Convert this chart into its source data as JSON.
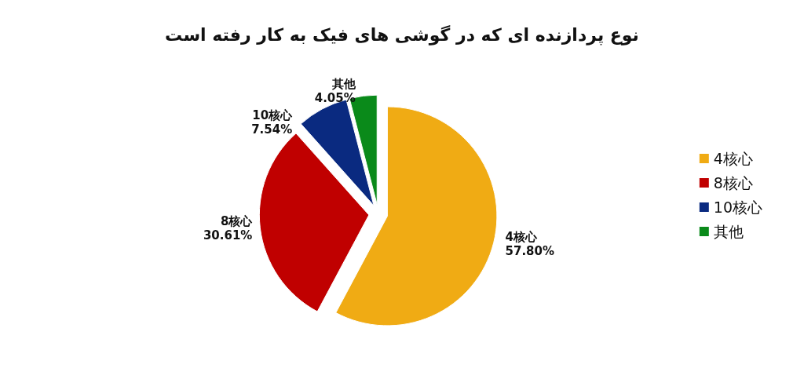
{
  "chart_data": {
    "type": "pie",
    "title": "نوع پردازنده ای که در گوشی های فیک به کار رفته است",
    "categories": [
      "4核心",
      "8核心",
      "10核心",
      "其他"
    ],
    "values": [
      57.8,
      30.61,
      7.54,
      4.05
    ],
    "value_labels": [
      "57.80%",
      "30.61%",
      "7.54%",
      "4.05%"
    ],
    "colors": [
      "#f0ab14",
      "#c00000",
      "#0a2a80",
      "#0a8a1a"
    ],
    "legend": "right"
  }
}
